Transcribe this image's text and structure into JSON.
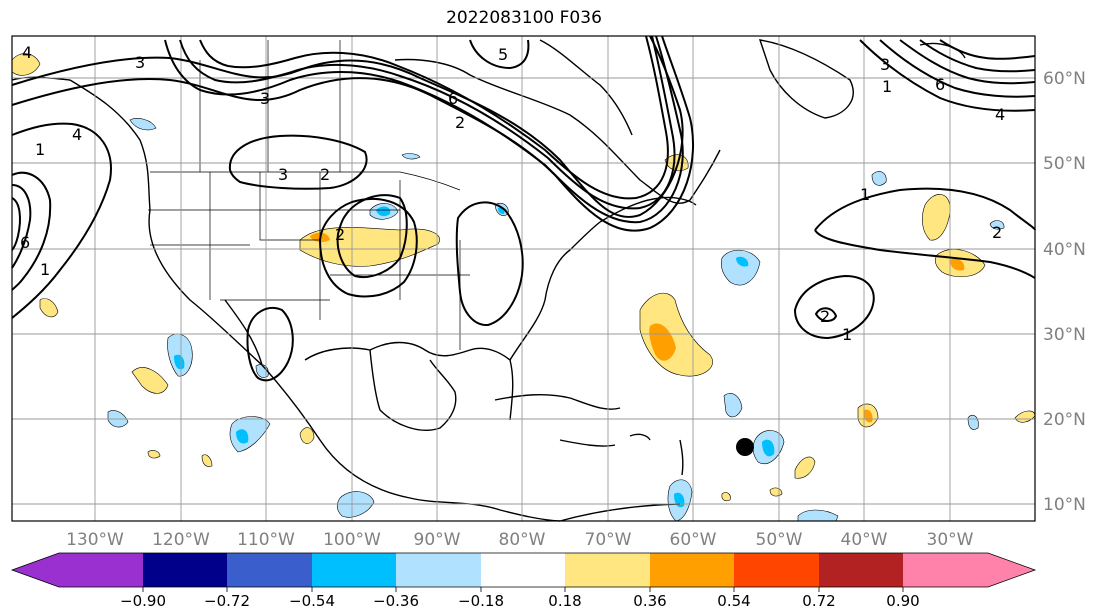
{
  "title": "2022083100 F036",
  "lon_labels": [
    "130°W",
    "120°W",
    "110°W",
    "100°W",
    "90°W",
    "80°W",
    "70°W",
    "60°W",
    "50°W",
    "40°W",
    "30°W"
  ],
  "lat_labels": [
    "60°N",
    "50°N",
    "40°N",
    "30°N",
    "20°N",
    "10°N"
  ],
  "colorbar": {
    "ticks": [
      "−0.90",
      "−0.72",
      "−0.54",
      "−0.36",
      "−0.18",
      "0.18",
      "0.36",
      "0.54",
      "0.72",
      "0.90"
    ],
    "colors": [
      "#9b30d0",
      "#00008b",
      "#3a5fcd",
      "#00bfff",
      "#b0e2ff",
      "#ffffff",
      "#ffe680",
      "#ffa000",
      "#ff4500",
      "#b22222",
      "#ff82ab"
    ]
  },
  "contour_labels": [
    "3",
    "4",
    "1",
    "6",
    "2",
    "5"
  ],
  "storm_marker": "tropical-system-dot"
}
